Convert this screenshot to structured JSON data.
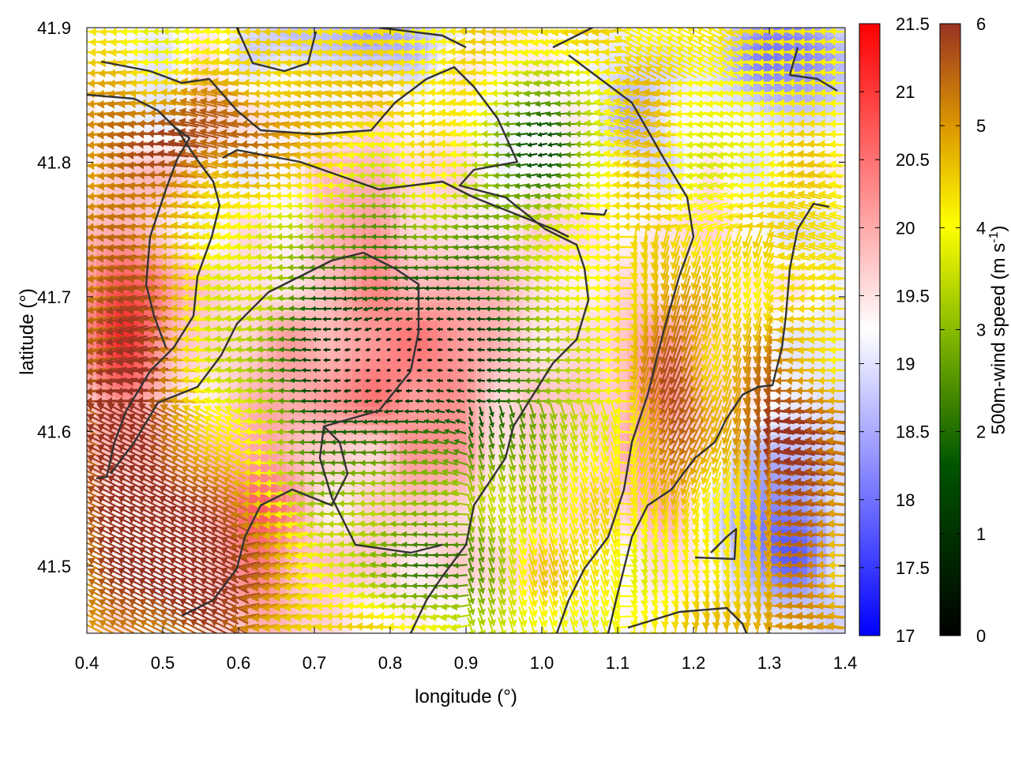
{
  "chart_data": {
    "type": "heatmap",
    "title": "",
    "xlabel": "longitude (°)",
    "ylabel": "latitude (°)",
    "xlim": [
      0.4,
      1.4
    ],
    "ylim": [
      41.45,
      41.9
    ],
    "x_ticks": [
      "0.4",
      "0.5",
      "0.6",
      "0.7",
      "0.8",
      "0.9",
      "1.0",
      "1.1",
      "1.2",
      "1.3",
      "1.4"
    ],
    "y_ticks": [
      "41.5",
      "41.6",
      "41.7",
      "41.8",
      "41.9"
    ],
    "grid": false,
    "background_field": {
      "colorbar_ticks": [
        "17",
        "17.5",
        "18",
        "18.5",
        "19",
        "19.5",
        "20",
        "20.5",
        "21",
        "21.5"
      ],
      "range": [
        17,
        21.5
      ],
      "colors": {
        "low": "#0000ff",
        "mid": "#ffffff",
        "high": "#ff0000"
      }
    },
    "wind_vectors": {
      "label": "500m-wind speed (m s-1)",
      "label_main": "500m-wind speed (m s",
      "label_sup": "-1",
      "label_end": ")",
      "colorbar_ticks": [
        "0",
        "1",
        "2",
        "3",
        "4",
        "5",
        "6"
      ],
      "range": [
        0,
        6
      ],
      "colors": {
        "stops": [
          "#000000",
          "#005500",
          "#88bb00",
          "#ffff00",
          "#dd9900",
          "#993322"
        ]
      }
    },
    "contour_color": "#333333"
  }
}
